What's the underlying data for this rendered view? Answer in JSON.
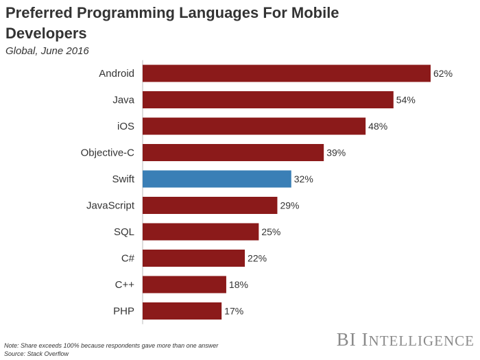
{
  "header": {
    "title": "Preferred Programming Languages For Mobile Developers",
    "subtitle": "Global, June 2016"
  },
  "footer": {
    "note": "Note: Share exceeds 100% because respondents gave more than one answer",
    "source": "Source: Stack Overflow",
    "brand_prefix": "BI",
    "brand_first_letter": "I",
    "brand_rest": "NTELLIGENCE"
  },
  "colors": {
    "bar": "#8b1a1a",
    "highlight": "#3a7fb6",
    "text": "#333333"
  },
  "chart_data": {
    "type": "bar",
    "orientation": "horizontal",
    "title": "Preferred Programming Languages For Mobile Developers",
    "subtitle": "Global, June 2016",
    "categories": [
      "Android",
      "Java",
      "iOS",
      "Objective-C",
      "Swift",
      "JavaScript",
      "SQL",
      "C#",
      "C++",
      "PHP"
    ],
    "values": [
      62,
      54,
      48,
      39,
      32,
      29,
      25,
      22,
      18,
      17
    ],
    "value_labels": [
      "62%",
      "54%",
      "48%",
      "39%",
      "32%",
      "29%",
      "25%",
      "22%",
      "18%",
      "17%"
    ],
    "highlight_category": "Swift",
    "unit": "%",
    "xlim": [
      0,
      62
    ],
    "grid": false,
    "legend": "none"
  }
}
